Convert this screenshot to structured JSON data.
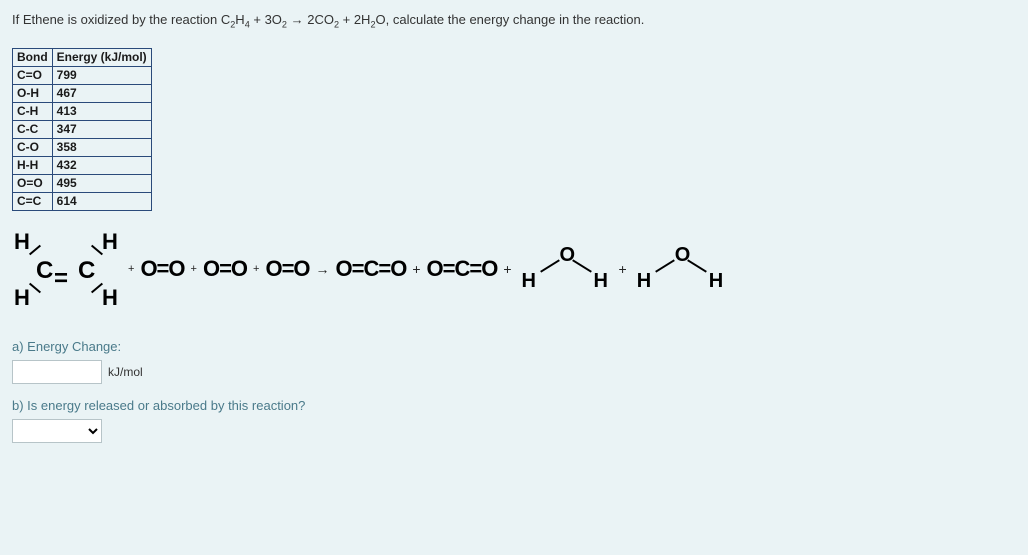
{
  "question": {
    "prefix": "If Ethene is oxidized by the reaction C",
    "s1": "2",
    "m1": "H",
    "s2": "4",
    "m2": " + 3O",
    "s3": "2",
    "m3": " → 2CO",
    "s4": "2",
    "m4": " + 2H",
    "s5": "2",
    "m5": "O, calculate the energy change in the reaction."
  },
  "table": {
    "h1": "Bond",
    "h2": "Energy (kJ/mol)",
    "rows": [
      {
        "bond": "C=O",
        "energy": "799"
      },
      {
        "bond": "O-H",
        "energy": "467"
      },
      {
        "bond": "C-H",
        "energy": "413"
      },
      {
        "bond": "C-C",
        "energy": "347"
      },
      {
        "bond": "C-O",
        "energy": "358"
      },
      {
        "bond": "H-H",
        "energy": "432"
      },
      {
        "bond": "O=O",
        "energy": "495"
      },
      {
        "bond": "C=C",
        "energy": "614"
      }
    ]
  },
  "reaction": {
    "ethene": {
      "C": "C",
      "H": "H",
      "dbl": "="
    },
    "o2": "O=O",
    "co2": "O=C=O",
    "water": {
      "O": "O",
      "H": "H"
    },
    "plus": "+",
    "arrow": "→"
  },
  "parts": {
    "a_label": "a) Energy Change:",
    "unit": "kJ/mol",
    "b_label": "b) Is energy released or absorbed by this reaction?"
  },
  "colors": {
    "page_bg": "#eaf3f5",
    "table_border": "#2a4a7a",
    "part_label": "#4a7a8a"
  }
}
